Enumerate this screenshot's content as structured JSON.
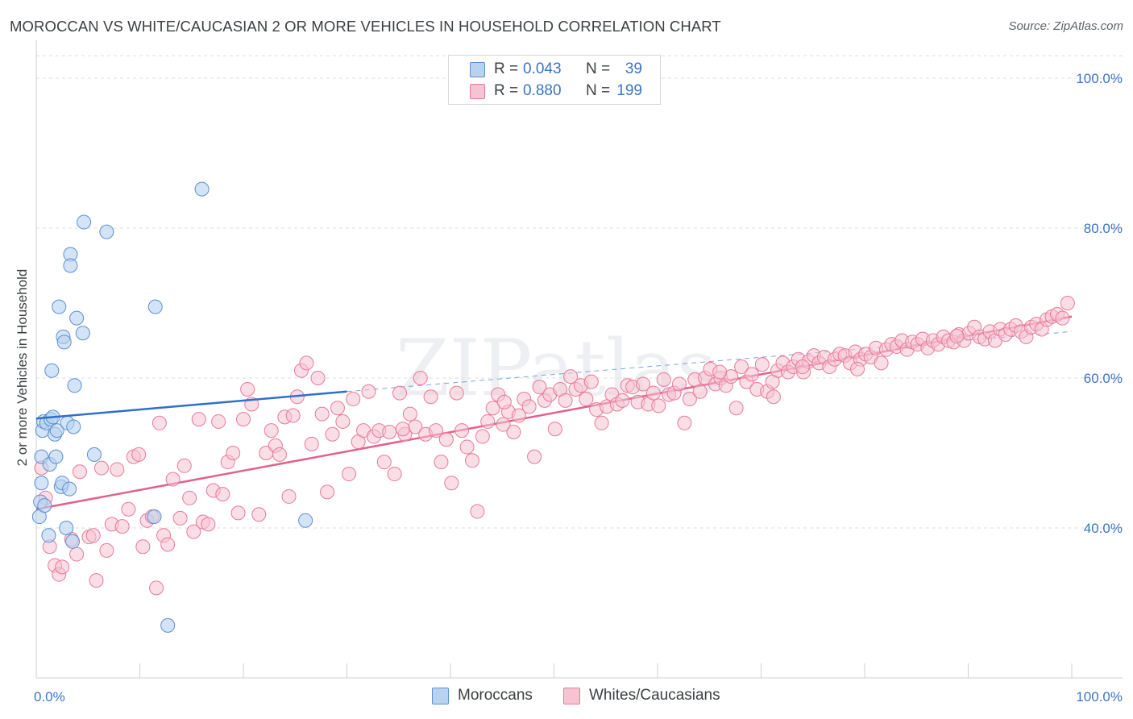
{
  "title": "MOROCCAN VS WHITE/CAUCASIAN 2 OR MORE VEHICLES IN HOUSEHOLD CORRELATION CHART",
  "source": "Source: ZipAtlas.com",
  "watermark": "ZIPatlas",
  "colors": {
    "moroccan_fill": "#b8d2f0",
    "moroccan_stroke": "#5b8fd4",
    "moroccan_line": "#2f6fcc",
    "white_fill": "#f6c3d2",
    "white_stroke": "#e8799b",
    "white_line": "#e0628c",
    "tick_text": "#3a74c4",
    "grid": "#dcdcdc"
  },
  "legend": {
    "rows": [
      {
        "r_label": "R =",
        "r_value": "0.043",
        "n_label": "N =",
        "n_value": "39"
      },
      {
        "r_label": "R =",
        "r_value": "0.880",
        "n_label": "N =",
        "n_value": "199"
      }
    ]
  },
  "bottom_legend": {
    "moroccans": "Moroccans",
    "whites": "Whites/Caucasians"
  },
  "chart_data": {
    "type": "scatter",
    "title": "MOROCCAN VS WHITE/CAUCASIAN 2 OR MORE VEHICLES IN HOUSEHOLD CORRELATION CHART",
    "xlabel": "",
    "ylabel": "2 or more Vehicles in Household",
    "xlim": [
      0,
      100
    ],
    "ylim": [
      20,
      104
    ],
    "x_tick_labels": [
      "0.0%",
      "100.0%"
    ],
    "y_ticks": [
      40,
      60,
      80,
      100
    ],
    "y_tick_labels": [
      "40.0%",
      "60.0%",
      "80.0%",
      "100.0%"
    ],
    "series": [
      {
        "name": "Moroccans",
        "r": 0.043,
        "n": 39,
        "trend": {
          "x": [
            0,
            30
          ],
          "y": [
            54.6,
            58.2
          ]
        },
        "trend_dashed": {
          "x": [
            30,
            100
          ],
          "y": [
            58.2,
            66.2
          ]
        },
        "points": [
          [
            0.3,
            41.5
          ],
          [
            0.4,
            43.5
          ],
          [
            0.5,
            46.0
          ],
          [
            0.5,
            49.5
          ],
          [
            0.6,
            53.0
          ],
          [
            0.7,
            54.2
          ],
          [
            1.0,
            54.0
          ],
          [
            1.2,
            39.0
          ],
          [
            1.3,
            48.5
          ],
          [
            1.4,
            54.5
          ],
          [
            1.5,
            61.0
          ],
          [
            1.6,
            54.8
          ],
          [
            1.8,
            52.5
          ],
          [
            1.9,
            49.5
          ],
          [
            2.0,
            53.0
          ],
          [
            2.2,
            69.5
          ],
          [
            2.4,
            45.5
          ],
          [
            2.5,
            46.0
          ],
          [
            2.6,
            65.5
          ],
          [
            2.7,
            64.8
          ],
          [
            2.9,
            40.0
          ],
          [
            3.0,
            54.0
          ],
          [
            3.2,
            45.2
          ],
          [
            3.3,
            76.5
          ],
          [
            3.3,
            75.0
          ],
          [
            3.5,
            38.2
          ],
          [
            3.6,
            53.5
          ],
          [
            3.7,
            59.0
          ],
          [
            3.9,
            68.0
          ],
          [
            4.5,
            66.0
          ],
          [
            4.6,
            80.8
          ],
          [
            5.6,
            49.8
          ],
          [
            6.8,
            79.5
          ],
          [
            11.4,
            41.5
          ],
          [
            11.5,
            69.5
          ],
          [
            12.7,
            27.0
          ],
          [
            16.0,
            85.2
          ],
          [
            26.0,
            41.0
          ],
          [
            0.8,
            43.0
          ]
        ]
      },
      {
        "name": "Whites/Caucasians",
        "r": 0.88,
        "n": 199,
        "trend": {
          "x": [
            0,
            100
          ],
          "y": [
            42.5,
            68.2
          ]
        },
        "points": [
          [
            0.5,
            48.0
          ],
          [
            0.9,
            44.0
          ],
          [
            1.3,
            37.5
          ],
          [
            1.8,
            35.0
          ],
          [
            2.2,
            33.8
          ],
          [
            2.5,
            34.8
          ],
          [
            3.4,
            38.5
          ],
          [
            3.9,
            36.5
          ],
          [
            4.2,
            47.5
          ],
          [
            5.1,
            38.8
          ],
          [
            5.5,
            39.0
          ],
          [
            5.8,
            33.0
          ],
          [
            6.3,
            48.0
          ],
          [
            6.8,
            37.0
          ],
          [
            7.3,
            40.5
          ],
          [
            7.8,
            47.8
          ],
          [
            8.3,
            40.2
          ],
          [
            8.9,
            42.5
          ],
          [
            9.4,
            49.5
          ],
          [
            9.9,
            49.8
          ],
          [
            10.3,
            37.5
          ],
          [
            10.7,
            41.0
          ],
          [
            11.2,
            41.5
          ],
          [
            11.6,
            32.0
          ],
          [
            11.9,
            54.0
          ],
          [
            12.3,
            39.0
          ],
          [
            12.7,
            37.8
          ],
          [
            13.2,
            46.5
          ],
          [
            13.9,
            41.3
          ],
          [
            14.3,
            48.3
          ],
          [
            14.8,
            44.0
          ],
          [
            15.2,
            39.5
          ],
          [
            15.7,
            54.5
          ],
          [
            16.1,
            40.8
          ],
          [
            16.6,
            40.5
          ],
          [
            17.1,
            45.0
          ],
          [
            17.6,
            54.2
          ],
          [
            18.0,
            44.5
          ],
          [
            18.5,
            48.8
          ],
          [
            19.0,
            50.0
          ],
          [
            19.5,
            42.0
          ],
          [
            20.0,
            54.5
          ],
          [
            20.4,
            58.5
          ],
          [
            20.8,
            56.5
          ],
          [
            21.5,
            41.8
          ],
          [
            22.2,
            50.0
          ],
          [
            22.7,
            53.0
          ],
          [
            23.1,
            51.0
          ],
          [
            23.5,
            49.8
          ],
          [
            24.0,
            54.8
          ],
          [
            24.4,
            44.2
          ],
          [
            24.8,
            55.0
          ],
          [
            25.2,
            57.5
          ],
          [
            25.6,
            61.0
          ],
          [
            26.1,
            62.0
          ],
          [
            26.6,
            51.2
          ],
          [
            27.2,
            60.0
          ],
          [
            27.6,
            55.2
          ],
          [
            28.1,
            44.8
          ],
          [
            28.6,
            52.5
          ],
          [
            29.1,
            56.0
          ],
          [
            29.6,
            54.2
          ],
          [
            30.2,
            47.2
          ],
          [
            30.6,
            57.2
          ],
          [
            31.1,
            51.5
          ],
          [
            31.6,
            53.0
          ],
          [
            32.1,
            58.2
          ],
          [
            32.6,
            52.2
          ],
          [
            33.1,
            53.0
          ],
          [
            33.6,
            48.8
          ],
          [
            34.1,
            52.8
          ],
          [
            34.6,
            47.2
          ],
          [
            35.1,
            58.0
          ],
          [
            35.6,
            52.5
          ],
          [
            36.1,
            55.2
          ],
          [
            36.6,
            53.5
          ],
          [
            37.1,
            60.0
          ],
          [
            37.6,
            52.5
          ],
          [
            38.1,
            57.5
          ],
          [
            38.6,
            53.0
          ],
          [
            39.1,
            48.8
          ],
          [
            39.6,
            51.8
          ],
          [
            40.1,
            46.0
          ],
          [
            40.6,
            58.0
          ],
          [
            41.1,
            53.0
          ],
          [
            41.6,
            50.8
          ],
          [
            42.1,
            49.0
          ],
          [
            42.6,
            42.2
          ],
          [
            43.1,
            52.2
          ],
          [
            43.6,
            54.2
          ],
          [
            44.1,
            56.0
          ],
          [
            44.6,
            57.8
          ],
          [
            45.1,
            53.8
          ],
          [
            45.6,
            55.5
          ],
          [
            46.1,
            52.8
          ],
          [
            46.6,
            55.0
          ],
          [
            47.1,
            57.2
          ],
          [
            47.6,
            56.2
          ],
          [
            48.1,
            49.5
          ],
          [
            48.6,
            58.8
          ],
          [
            49.1,
            57.0
          ],
          [
            49.6,
            57.8
          ],
          [
            50.1,
            53.2
          ],
          [
            50.6,
            58.5
          ],
          [
            51.1,
            57.0
          ],
          [
            51.6,
            60.2
          ],
          [
            52.1,
            58.5
          ],
          [
            52.6,
            59.0
          ],
          [
            53.1,
            57.2
          ],
          [
            53.6,
            59.5
          ],
          [
            54.1,
            55.8
          ],
          [
            54.6,
            54.0
          ],
          [
            55.1,
            56.2
          ],
          [
            55.6,
            57.8
          ],
          [
            56.1,
            56.5
          ],
          [
            56.6,
            57.0
          ],
          [
            57.1,
            59.0
          ],
          [
            57.6,
            58.8
          ],
          [
            58.1,
            56.8
          ],
          [
            58.6,
            59.2
          ],
          [
            59.1,
            56.5
          ],
          [
            59.6,
            58.0
          ],
          [
            60.1,
            56.3
          ],
          [
            60.6,
            59.8
          ],
          [
            61.1,
            57.8
          ],
          [
            61.6,
            58.0
          ],
          [
            62.1,
            59.2
          ],
          [
            62.6,
            54.0
          ],
          [
            63.1,
            57.2
          ],
          [
            63.6,
            59.8
          ],
          [
            64.1,
            58.2
          ],
          [
            64.6,
            60.0
          ],
          [
            65.1,
            61.2
          ],
          [
            65.6,
            59.2
          ],
          [
            66.1,
            60.0
          ],
          [
            66.6,
            59.0
          ],
          [
            67.1,
            60.2
          ],
          [
            67.6,
            56.0
          ],
          [
            68.1,
            61.5
          ],
          [
            68.6,
            59.5
          ],
          [
            69.1,
            60.5
          ],
          [
            69.6,
            58.5
          ],
          [
            70.1,
            61.8
          ],
          [
            70.6,
            58.2
          ],
          [
            71.1,
            59.5
          ],
          [
            71.6,
            61.0
          ],
          [
            72.1,
            62.0
          ],
          [
            72.6,
            60.8
          ],
          [
            73.1,
            61.5
          ],
          [
            73.6,
            62.5
          ],
          [
            74.1,
            60.8
          ],
          [
            74.6,
            62.2
          ],
          [
            75.1,
            63.0
          ],
          [
            75.6,
            62.0
          ],
          [
            76.1,
            62.8
          ],
          [
            76.6,
            61.5
          ],
          [
            77.1,
            62.5
          ],
          [
            77.6,
            63.2
          ],
          [
            78.1,
            63.0
          ],
          [
            78.6,
            62.0
          ],
          [
            79.1,
            63.5
          ],
          [
            79.6,
            62.5
          ],
          [
            80.1,
            63.2
          ],
          [
            80.6,
            62.8
          ],
          [
            81.1,
            64.0
          ],
          [
            81.6,
            62.0
          ],
          [
            82.1,
            63.8
          ],
          [
            82.6,
            64.5
          ],
          [
            83.1,
            64.2
          ],
          [
            83.6,
            65.0
          ],
          [
            84.1,
            63.8
          ],
          [
            84.6,
            64.8
          ],
          [
            85.1,
            64.5
          ],
          [
            85.6,
            65.2
          ],
          [
            86.1,
            64.0
          ],
          [
            86.6,
            65.0
          ],
          [
            87.1,
            64.5
          ],
          [
            87.6,
            65.5
          ],
          [
            88.1,
            65.0
          ],
          [
            88.6,
            64.8
          ],
          [
            89.1,
            65.8
          ],
          [
            89.6,
            65.0
          ],
          [
            90.1,
            66.0
          ],
          [
            90.6,
            66.8
          ],
          [
            91.1,
            65.5
          ],
          [
            91.6,
            65.2
          ],
          [
            92.1,
            66.2
          ],
          [
            92.6,
            65.0
          ],
          [
            93.1,
            66.5
          ],
          [
            93.6,
            65.8
          ],
          [
            94.1,
            66.5
          ],
          [
            94.6,
            67.0
          ],
          [
            95.1,
            66.2
          ],
          [
            95.6,
            65.5
          ],
          [
            96.1,
            66.8
          ],
          [
            96.6,
            67.2
          ],
          [
            97.1,
            66.5
          ],
          [
            97.6,
            67.8
          ],
          [
            98.1,
            68.2
          ],
          [
            98.6,
            68.5
          ],
          [
            99.1,
            68.0
          ],
          [
            99.6,
            70.0
          ],
          [
            35.4,
            53.2
          ],
          [
            45.2,
            56.8
          ],
          [
            66.0,
            60.8
          ],
          [
            71.2,
            57.5
          ],
          [
            74.0,
            61.5
          ],
          [
            79.3,
            61.2
          ],
          [
            88.9,
            65.6
          ]
        ]
      }
    ]
  }
}
